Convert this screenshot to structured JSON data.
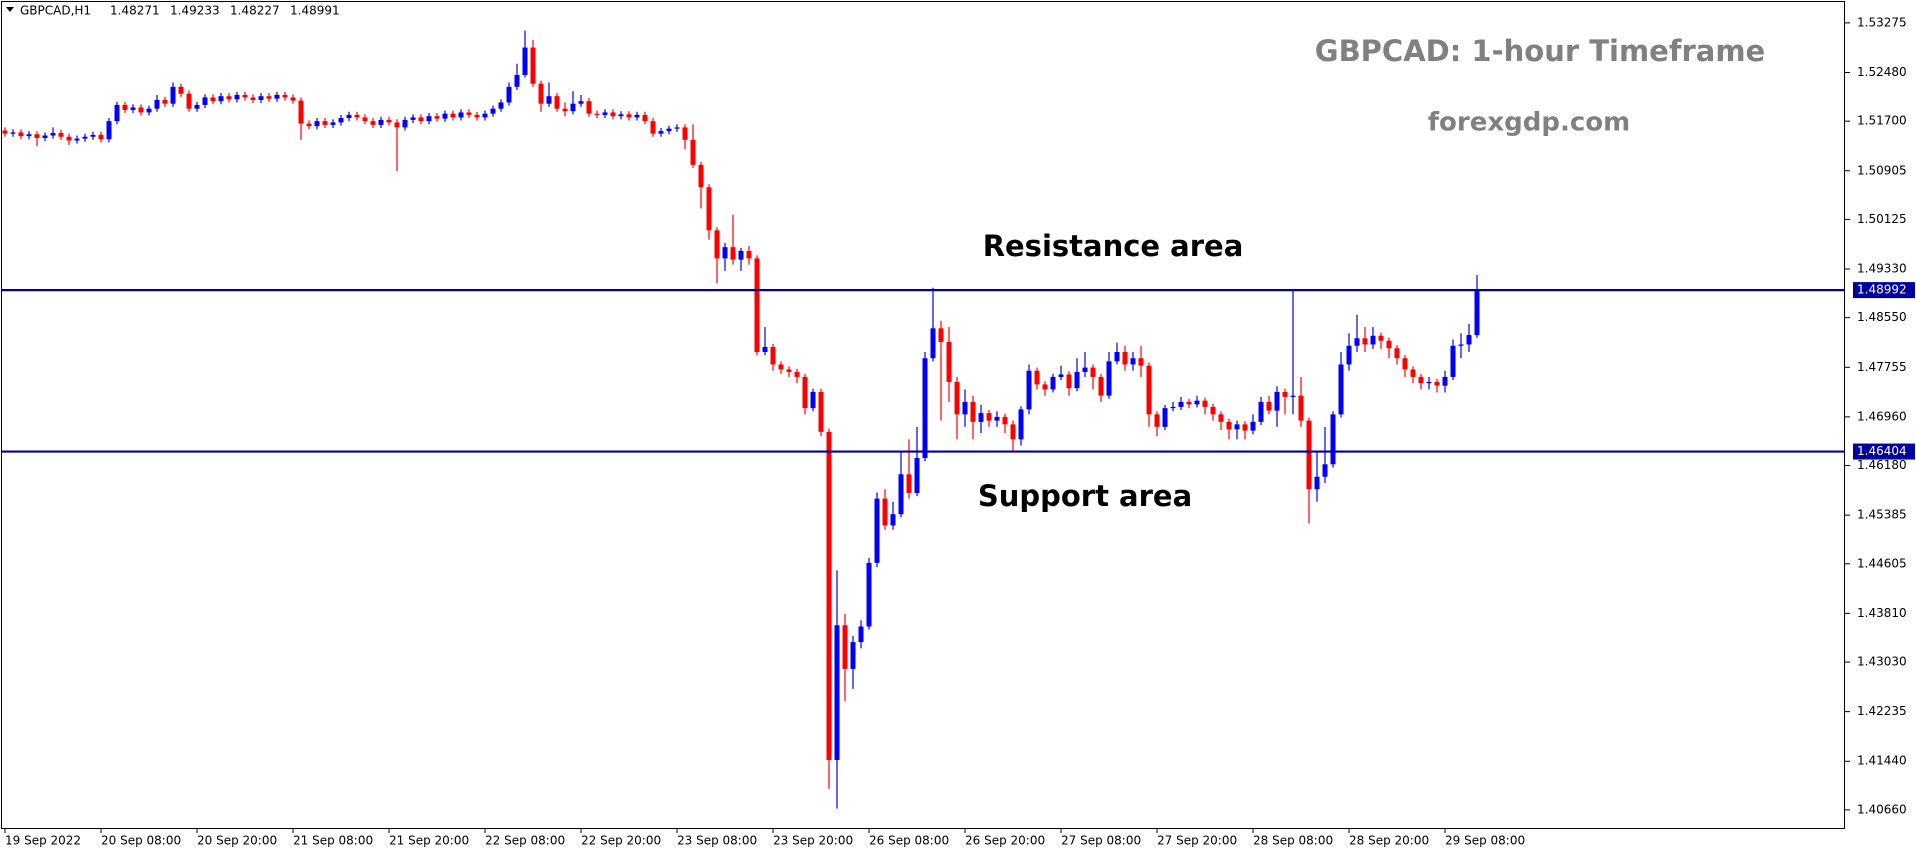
{
  "chart_data": {
    "type": "candlestick",
    "header": {
      "symbol": "GBPCAD,H1",
      "open": 1.48271,
      "high": 1.49233,
      "low": 1.48227,
      "close": 1.48991
    },
    "title": "GBPCAD: 1-hour Timeframe",
    "subtitle": "forexgdp.com",
    "annotations": [
      "Resistance area",
      "Support area"
    ],
    "up_color": "#0000ff",
    "down_color": "#ff0000",
    "level_color": "#0000a0",
    "hlines": [
      1.48992,
      1.46404
    ],
    "ylim": [
      1.4037,
      1.5361
    ],
    "yticks": [
      1.53275,
      {
        "value": 1.5248,
        "label": "1.52480"
      },
      {
        "value": 1.517,
        "label": "1.51700"
      },
      1.50905,
      1.50125,
      {
        "value": 1.4933,
        "label": "1.49330"
      },
      {
        "value": 1.4855,
        "label": "1.48550"
      },
      1.47755,
      {
        "value": 1.4696,
        "label": "1.46960"
      },
      {
        "value": 1.4618,
        "label": "1.46180"
      },
      1.45385,
      1.44605,
      {
        "value": 1.4381,
        "label": "1.43810"
      },
      {
        "value": 1.4303,
        "label": "1.43030"
      },
      1.42235,
      {
        "value": 1.4144,
        "label": "1.41440"
      },
      {
        "value": 1.4066,
        "label": "1.40660"
      }
    ],
    "categories": [
      "19 Sep 2022",
      null,
      null,
      null,
      null,
      null,
      null,
      null,
      null,
      null,
      null,
      null,
      "20 Sep 08:00",
      null,
      null,
      null,
      null,
      null,
      null,
      null,
      null,
      null,
      null,
      null,
      "20 Sep 20:00",
      null,
      null,
      null,
      null,
      null,
      null,
      null,
      null,
      null,
      null,
      null,
      "21 Sep 08:00",
      null,
      null,
      null,
      null,
      null,
      null,
      null,
      null,
      null,
      null,
      null,
      "21 Sep 20:00",
      null,
      null,
      null,
      null,
      null,
      null,
      null,
      null,
      null,
      null,
      null,
      "22 Sep 08:00",
      null,
      null,
      null,
      null,
      null,
      null,
      null,
      null,
      null,
      null,
      null,
      "22 Sep 20:00",
      null,
      null,
      null,
      null,
      null,
      null,
      null,
      null,
      null,
      null,
      null,
      "23 Sep 08:00",
      null,
      null,
      null,
      null,
      null,
      null,
      null,
      null,
      null,
      null,
      null,
      "23 Sep 20:00",
      null,
      null,
      null,
      null,
      null,
      null,
      null,
      null,
      null,
      null,
      null,
      "26 Sep 08:00",
      null,
      null,
      null,
      null,
      null,
      null,
      null,
      null,
      null,
      null,
      null,
      "26 Sep 20:00",
      null,
      null,
      null,
      null,
      null,
      null,
      null,
      null,
      null,
      null,
      null,
      "27 Sep 08:00",
      null,
      null,
      null,
      null,
      null,
      null,
      null,
      null,
      null,
      null,
      null,
      "27 Sep 20:00",
      null,
      null,
      null,
      null,
      null,
      null,
      null,
      null,
      null,
      null,
      null,
      "28 Sep 08:00",
      null,
      null,
      null,
      null,
      null,
      null,
      null,
      null,
      null,
      null,
      null,
      "28 Sep 20:00",
      null,
      null,
      null,
      null,
      null,
      null,
      null,
      null,
      null,
      null,
      null,
      "29 Sep 08:00",
      null,
      null,
      null,
      null
    ],
    "open": [
      1.5155,
      1.515,
      1.5152,
      1.5146,
      1.5149,
      1.5143,
      1.5147,
      1.5151,
      1.5145,
      1.5139,
      1.5142,
      1.5145,
      1.5148,
      1.5141,
      1.517,
      1.5196,
      1.5188,
      1.5192,
      1.5184,
      1.519,
      1.5204,
      1.5198,
      1.5225,
      1.5214,
      1.519,
      1.5196,
      1.5208,
      1.5202,
      1.521,
      1.5205,
      1.5212,
      1.5208,
      1.5204,
      1.521,
      1.5206,
      1.5212,
      1.5208,
      1.5203,
      1.5166,
      1.5162,
      1.517,
      1.5164,
      1.5168,
      1.5175,
      1.518,
      1.5176,
      1.517,
      1.5164,
      1.5172,
      1.5168,
      1.516,
      1.5172,
      1.5176,
      1.517,
      1.5178,
      1.5174,
      1.5182,
      1.5176,
      1.5184,
      1.518,
      1.5176,
      1.5182,
      1.519,
      1.52,
      1.5225,
      1.5244,
      1.5288,
      1.523,
      1.5198,
      1.521,
      1.519,
      1.5186,
      1.5198,
      1.5202,
      1.5182,
      1.518,
      1.5184,
      1.5178,
      1.5181,
      1.5176,
      1.518,
      1.517,
      1.515,
      1.5154,
      1.5158,
      1.516,
      1.514,
      1.51,
      1.5064,
      1.4995,
      1.495,
      1.4968,
      1.4948,
      1.4962,
      1.495,
      1.48,
      1.4808,
      1.478,
      1.4772,
      1.4768,
      1.476,
      1.471,
      1.4736,
      1.4672,
      1.4146,
      1.4362,
      1.4292,
      1.4335,
      1.436,
      1.4462,
      1.4565,
      1.4522,
      1.454,
      1.4604,
      1.4574,
      1.463,
      1.479,
      1.4838,
      1.4816,
      1.4752,
      1.47,
      1.472,
      1.4688,
      1.4702,
      1.469,
      1.4696,
      1.4684,
      1.466,
      1.4708,
      1.477,
      1.4748,
      1.474,
      1.476,
      1.4764,
      1.4742,
      1.4768,
      1.4775,
      1.476,
      1.473,
      1.4785,
      1.48,
      1.478,
      1.479,
      1.4778,
      1.47,
      1.468,
      1.471,
      1.4712,
      1.472,
      1.4716,
      1.4722,
      1.4712,
      1.47,
      1.4688,
      1.4676,
      1.4684,
      1.4674,
      1.4688,
      1.472,
      1.4706,
      1.4736,
      1.4728,
      1.473,
      1.469,
      1.458,
      1.46,
      1.462,
      1.47,
      1.478,
      1.481,
      1.4822,
      1.4812,
      1.4826,
      1.4818,
      1.4806,
      1.479,
      1.4772,
      1.476,
      1.475,
      1.4752,
      1.4746,
      1.476,
      1.481,
      1.4812,
      1.48271
    ],
    "high": [
      1.516,
      1.5157,
      1.5157,
      1.5154,
      1.5154,
      1.5152,
      1.516,
      1.5156,
      1.515,
      1.5147,
      1.515,
      1.5153,
      1.5153,
      1.5175,
      1.5201,
      1.5201,
      1.5197,
      1.5197,
      1.5195,
      1.5212,
      1.5209,
      1.5232,
      1.523,
      1.5219,
      1.5201,
      1.5213,
      1.5213,
      1.5215,
      1.5215,
      1.5217,
      1.5217,
      1.5213,
      1.5215,
      1.5215,
      1.5217,
      1.5217,
      1.5213,
      1.5208,
      1.5171,
      1.5175,
      1.5175,
      1.5173,
      1.518,
      1.5185,
      1.5185,
      1.5181,
      1.5175,
      1.5177,
      1.5177,
      1.5173,
      1.5177,
      1.5181,
      1.5181,
      1.5183,
      1.5183,
      1.5187,
      1.5187,
      1.5189,
      1.5189,
      1.5185,
      1.5187,
      1.5195,
      1.5205,
      1.5232,
      1.5262,
      1.5315,
      1.53,
      1.5235,
      1.5232,
      1.5215,
      1.52,
      1.5218,
      1.5212,
      1.5207,
      1.5187,
      1.5189,
      1.5189,
      1.5186,
      1.5186,
      1.5185,
      1.5185,
      1.5175,
      1.5159,
      1.5163,
      1.5165,
      1.5165,
      1.5165,
      1.5105,
      1.5069,
      1.5,
      1.4975,
      1.502,
      1.4967,
      1.497,
      1.4955,
      1.484,
      1.4813,
      1.4785,
      1.4777,
      1.4773,
      1.4765,
      1.4741,
      1.4741,
      1.4677,
      1.445,
      1.438,
      1.4345,
      1.437,
      1.447,
      1.4575,
      1.458,
      1.456,
      1.464,
      1.466,
      1.468,
      1.48,
      1.4903,
      1.485,
      1.484,
      1.476,
      1.474,
      1.473,
      1.4715,
      1.4707,
      1.4705,
      1.4701,
      1.469,
      1.4713,
      1.478,
      1.4775,
      1.4753,
      1.4765,
      1.4778,
      1.4769,
      1.479,
      1.48,
      1.478,
      1.4765,
      1.48,
      1.4815,
      1.481,
      1.48,
      1.481,
      1.4783,
      1.4705,
      1.4715,
      1.472,
      1.4728,
      1.4725,
      1.473,
      1.4727,
      1.4717,
      1.4705,
      1.4693,
      1.469,
      1.4689,
      1.47,
      1.4728,
      1.473,
      1.4745,
      1.4741,
      1.49,
      1.476,
      1.4695,
      1.464,
      1.468,
      1.4705,
      1.48,
      1.483,
      1.486,
      1.484,
      1.484,
      1.4831,
      1.4823,
      1.4811,
      1.4795,
      1.4777,
      1.4765,
      1.476,
      1.4757,
      1.477,
      1.482,
      1.483,
      1.4845,
      1.49233
    ],
    "low": [
      1.5145,
      1.5145,
      1.5141,
      1.5141,
      1.513,
      1.5138,
      1.5142,
      1.514,
      1.5132,
      1.5134,
      1.5137,
      1.514,
      1.5136,
      1.5136,
      1.5165,
      1.5183,
      1.5183,
      1.5179,
      1.5179,
      1.5185,
      1.5193,
      1.5193,
      1.5209,
      1.5185,
      1.5185,
      1.5191,
      1.5197,
      1.5197,
      1.52,
      1.52,
      1.5203,
      1.5199,
      1.5199,
      1.5201,
      1.5201,
      1.5203,
      1.5198,
      1.514,
      1.5157,
      1.5157,
      1.5159,
      1.5159,
      1.5163,
      1.517,
      1.5171,
      1.5165,
      1.5159,
      1.5159,
      1.5163,
      1.509,
      1.5155,
      1.5167,
      1.5165,
      1.5165,
      1.5169,
      1.5169,
      1.5171,
      1.5171,
      1.5175,
      1.5171,
      1.5171,
      1.5177,
      1.5185,
      1.5195,
      1.522,
      1.524,
      1.5225,
      1.5185,
      1.5193,
      1.5185,
      1.5178,
      1.5181,
      1.5193,
      1.5177,
      1.5175,
      1.5175,
      1.5173,
      1.5173,
      1.5171,
      1.5171,
      1.5165,
      1.5145,
      1.5145,
      1.5149,
      1.5153,
      1.5125,
      1.5095,
      1.503,
      1.498,
      1.491,
      1.493,
      1.494,
      1.493,
      1.494,
      1.4795,
      1.4795,
      1.477,
      1.4765,
      1.476,
      1.475,
      1.47,
      1.4705,
      1.4665,
      1.41,
      1.4068,
      1.424,
      1.426,
      1.4325,
      1.4355,
      1.4455,
      1.4515,
      1.4515,
      1.4535,
      1.4565,
      1.4569,
      1.4625,
      1.4785,
      1.469,
      1.472,
      1.466,
      1.468,
      1.466,
      1.467,
      1.468,
      1.468,
      1.467,
      1.464,
      1.465,
      1.47,
      1.474,
      1.473,
      1.4735,
      1.4755,
      1.473,
      1.4737,
      1.476,
      1.474,
      1.472,
      1.4725,
      1.478,
      1.477,
      1.477,
      1.476,
      1.468,
      1.4665,
      1.4675,
      1.4705,
      1.4707,
      1.471,
      1.4711,
      1.47,
      1.469,
      1.4675,
      1.466,
      1.466,
      1.466,
      1.4668,
      1.4683,
      1.47,
      1.468,
      1.47,
      1.47,
      1.468,
      1.4525,
      1.456,
      1.459,
      1.4615,
      1.4695,
      1.477,
      1.48,
      1.48,
      1.4805,
      1.4805,
      1.479,
      1.478,
      1.476,
      1.475,
      1.474,
      1.474,
      1.4735,
      1.4735,
      1.4755,
      1.479,
      1.48,
      1.48227
    ],
    "close": [
      1.515,
      1.5152,
      1.5146,
      1.5149,
      1.5143,
      1.5147,
      1.5151,
      1.5145,
      1.5139,
      1.5142,
      1.5145,
      1.5148,
      1.5141,
      1.517,
      1.5196,
      1.5188,
      1.5192,
      1.5184,
      1.519,
      1.5204,
      1.5198,
      1.5225,
      1.5214,
      1.519,
      1.5196,
      1.5208,
      1.5202,
      1.521,
      1.5205,
      1.5212,
      1.5208,
      1.5204,
      1.521,
      1.5206,
      1.5212,
      1.5208,
      1.5203,
      1.5166,
      1.5162,
      1.517,
      1.5164,
      1.5168,
      1.5175,
      1.518,
      1.5176,
      1.517,
      1.5164,
      1.5172,
      1.5168,
      1.516,
      1.5172,
      1.5176,
      1.517,
      1.5178,
      1.5174,
      1.5182,
      1.5176,
      1.5184,
      1.518,
      1.5176,
      1.5182,
      1.519,
      1.52,
      1.5225,
      1.5244,
      1.5288,
      1.523,
      1.5198,
      1.521,
      1.519,
      1.5186,
      1.5198,
      1.5202,
      1.5182,
      1.518,
      1.5184,
      1.5178,
      1.5181,
      1.5176,
      1.518,
      1.517,
      1.515,
      1.5154,
      1.5158,
      1.516,
      1.514,
      1.51,
      1.5064,
      1.4995,
      1.495,
      1.4968,
      1.4948,
      1.4962,
      1.495,
      1.48,
      1.4808,
      1.478,
      1.4772,
      1.4768,
      1.476,
      1.471,
      1.4736,
      1.4672,
      1.4146,
      1.4362,
      1.4292,
      1.4335,
      1.436,
      1.4462,
      1.4565,
      1.4522,
      1.454,
      1.4604,
      1.4574,
      1.463,
      1.479,
      1.4838,
      1.4816,
      1.4752,
      1.47,
      1.472,
      1.4688,
      1.4702,
      1.469,
      1.4696,
      1.4684,
      1.466,
      1.4708,
      1.477,
      1.4748,
      1.474,
      1.476,
      1.4764,
      1.4742,
      1.4768,
      1.4775,
      1.476,
      1.473,
      1.4785,
      1.48,
      1.478,
      1.479,
      1.4778,
      1.47,
      1.468,
      1.471,
      1.4712,
      1.472,
      1.4716,
      1.4722,
      1.4712,
      1.47,
      1.4688,
      1.4676,
      1.4684,
      1.4674,
      1.4688,
      1.472,
      1.4706,
      1.4736,
      1.4728,
      1.473,
      1.469,
      1.458,
      1.46,
      1.462,
      1.47,
      1.478,
      1.481,
      1.4822,
      1.4812,
      1.4826,
      1.4818,
      1.4806,
      1.479,
      1.4772,
      1.476,
      1.475,
      1.4752,
      1.4746,
      1.476,
      1.481,
      1.4812,
      1.48271,
      1.48991
    ]
  }
}
